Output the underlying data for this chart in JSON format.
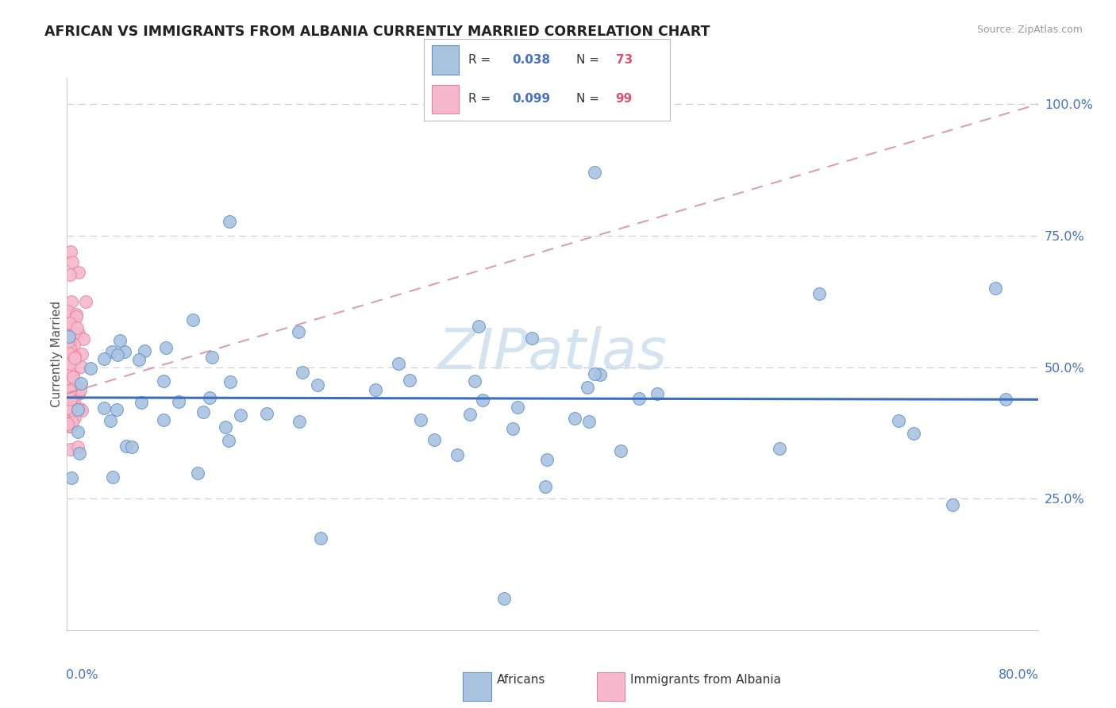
{
  "title": "AFRICAN VS IMMIGRANTS FROM ALBANIA CURRENTLY MARRIED CORRELATION CHART",
  "source": "Source: ZipAtlas.com",
  "ylabel": "Currently Married",
  "xlim": [
    0.0,
    0.8
  ],
  "ylim": [
    0.0,
    1.05
  ],
  "yticks": [
    0.25,
    0.5,
    0.75,
    1.0
  ],
  "ytick_labels": [
    "25.0%",
    "50.0%",
    "75.0%",
    "100.0%"
  ],
  "color_african": "#aac4e0",
  "color_albania": "#f5b8cc",
  "color_african_edge": "#5b8fce",
  "color_albania_edge": "#e8829a",
  "color_african_line": "#3a6fbe",
  "color_albania_line": "#d08090",
  "watermark_color": "#d0e0ef",
  "grid_color": "#cccccc",
  "axis_color": "#cccccc",
  "title_color": "#222222",
  "source_color": "#999999",
  "ylabel_color": "#555555",
  "tick_color": "#4472c4",
  "legend_r_color": "#4472c4",
  "legend_n_color": "#e05070",
  "african_seed": 42,
  "albania_seed": 7
}
